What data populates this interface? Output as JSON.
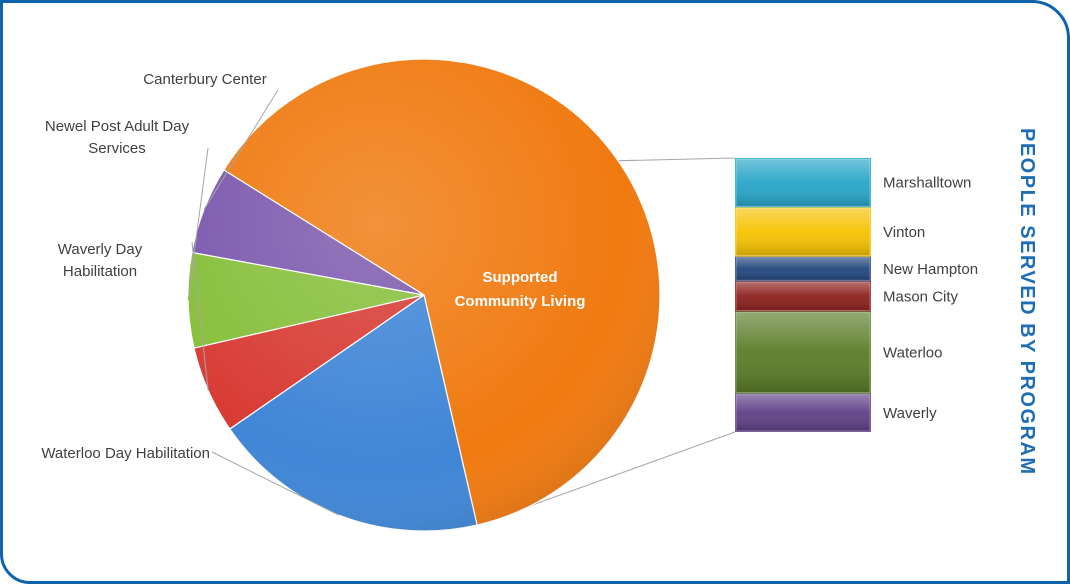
{
  "title": "PEOPLE SERVED BY PROGRAM",
  "colors": {
    "frame": "#0f63aa",
    "title": "#1f6db5",
    "connector": "#a6a6a6"
  },
  "chart_data": {
    "type": "bar-of-pie",
    "title": "PEOPLE SERVED BY PROGRAM",
    "pie": {
      "slices": [
        {
          "label": "Supported Community Living",
          "value": 62.5,
          "color": "#f07a10",
          "label_position": "inside"
        },
        {
          "label": "Waterloo Day Habilitation",
          "value": 19.0,
          "color": "#3f86d6",
          "label_position": "outside"
        },
        {
          "label": "Waverly Day Habilitation",
          "value": 6.0,
          "color": "#d83b34",
          "label_position": "outside"
        },
        {
          "label": "Newel Post Adult Day Services",
          "value": 6.5,
          "color": "#86bf3a",
          "label_position": "outside"
        },
        {
          "label": "Canterbury Center",
          "value": 6.0,
          "color": "#7c58ad",
          "label_position": "outside"
        }
      ]
    },
    "bar": {
      "breakdown_of": "Supported Community Living",
      "segments": [
        {
          "label": "Waverly",
          "value": 14,
          "color": "#5e3f86"
        },
        {
          "label": "Waterloo",
          "value": 30,
          "color": "#5a7c27"
        },
        {
          "label": "Mason City",
          "value": 11,
          "color": "#8c1f1d"
        },
        {
          "label": "New Hampton",
          "value": 9,
          "color": "#21467d"
        },
        {
          "label": "Vinton",
          "value": 18,
          "color": "#f6c200"
        },
        {
          "label": "Marshalltown",
          "value": 18,
          "color": "#27a6c8"
        }
      ]
    }
  }
}
